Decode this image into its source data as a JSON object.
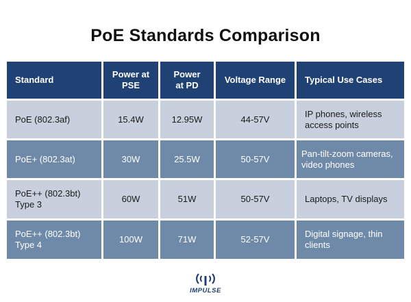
{
  "title": "PoE Standards Comparison",
  "table": {
    "headers": [
      "Standard",
      "Power at PSE",
      "Power at PD",
      "Voltage Range",
      "Typical Use Cases"
    ],
    "rows": [
      [
        "PoE (802.3af)",
        "15.4W",
        "12.95W",
        "44-57V",
        "IP phones, wireless access points"
      ],
      [
        "PoE+ (802.3at)",
        "30W",
        "25.5W",
        "50-57V",
        "Pan-tilt-zoom cameras, video phones"
      ],
      [
        "PoE++ (802.3bt) Type 3",
        "60W",
        "51W",
        "50-57V",
        "Laptops, TV displays"
      ],
      [
        "PoE++ (802.3bt) Type 4",
        "100W",
        "71W",
        "52-57V",
        "Digital signage, thin clients"
      ]
    ]
  },
  "logo": {
    "text": "IMPULSE",
    "icon": "impulse-logo-icon"
  },
  "colors": {
    "header_bg": "#1f4173",
    "row_light_bg": "#c7d0dc",
    "row_dark_bg": "#6e8aa8"
  }
}
